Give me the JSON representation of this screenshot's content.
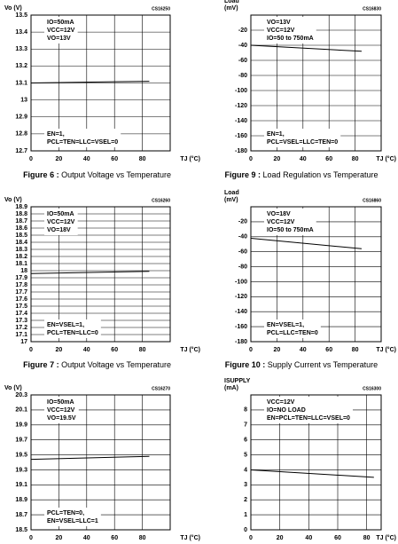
{
  "chart_data": [
    {
      "type": "line",
      "code": "CS16250",
      "ylabel": [
        "Vo (V)"
      ],
      "xlabel": "TJ (°C)",
      "caption": "Figure 6 : Output Voltage vs Temperature",
      "ylim": [
        12.7,
        13.5
      ],
      "yticks": [
        12.7,
        12.8,
        12.9,
        13.0,
        13.1,
        13.2,
        13.3,
        13.4,
        13.5
      ],
      "xlim": [
        0,
        100
      ],
      "xticks": [
        0,
        20,
        40,
        60,
        80
      ],
      "annotations": [
        [
          "IO=50mA",
          "VCC=12V",
          "VO=13V"
        ],
        [
          "EN=1,",
          "PCL=TEN=LLC=VSEL=0"
        ]
      ],
      "series": [
        {
          "color": "#000000",
          "x": [
            0,
            85
          ],
          "values": [
            13.1,
            13.11
          ]
        }
      ]
    },
    {
      "type": "line",
      "code": "CS16830",
      "ylabel": [
        "Load",
        "(mV)"
      ],
      "xlabel": "TJ (°C)",
      "caption": "Figure 9 : Load Regulation vs Temperature",
      "ylim": [
        -180,
        0
      ],
      "yticks": [
        -180,
        -160,
        -140,
        -120,
        -100,
        -80,
        -60,
        -40,
        -20
      ],
      "xlim": [
        0,
        100
      ],
      "xticks": [
        0,
        20,
        40,
        60,
        80
      ],
      "annotations": [
        [
          "VO=13V",
          "VCC=12V",
          "IO=50 to 750mA"
        ],
        [
          "EN=1,",
          "PCL=VSEL=LLC=TEN=0"
        ]
      ],
      "series": [
        {
          "color": "#000000",
          "x": [
            0,
            85
          ],
          "values": [
            -40,
            -48
          ]
        }
      ]
    },
    {
      "type": "line",
      "code": "CS16260",
      "ylabel": [
        "Vo (V)"
      ],
      "xlabel": "TJ (°C)",
      "caption": "Figure 7 : Output Voltage vs Temperature",
      "ylim": [
        17.0,
        18.9
      ],
      "yticks": [
        17.0,
        17.1,
        17.2,
        17.3,
        17.4,
        17.5,
        17.6,
        17.7,
        17.8,
        17.9,
        18.0,
        18.1,
        18.2,
        18.3,
        18.4,
        18.5,
        18.6,
        18.7,
        18.8,
        18.9
      ],
      "xlim": [
        0,
        100
      ],
      "xticks": [
        0,
        20,
        40,
        60,
        80
      ],
      "annotations": [
        [
          "IO=50mA",
          "VCC=12V",
          "VO=18V"
        ],
        [
          "EN=VSEL=1,",
          "PCL=TEN=LLC=0"
        ]
      ],
      "series": [
        {
          "color": "#000000",
          "x": [
            0,
            85
          ],
          "values": [
            17.96,
            17.99
          ]
        }
      ]
    },
    {
      "type": "line",
      "code": "CS16860",
      "ylabel": [
        "Load",
        "(mV)"
      ],
      "xlabel": "TJ (°C)",
      "caption": "Figure 10 : Supply Current vs Temperature",
      "ylim": [
        -180,
        0
      ],
      "yticks": [
        -180,
        -160,
        -140,
        -120,
        -100,
        -80,
        -60,
        -40,
        -20
      ],
      "xlim": [
        0,
        100
      ],
      "xticks": [
        0,
        20,
        40,
        60,
        80
      ],
      "annotations": [
        [
          "VO=18V",
          "VCC=12V",
          "IO=50 to 750mA"
        ],
        [
          "EN=VSEL=1,",
          "PCL=LLC=TEN=0"
        ]
      ],
      "series": [
        {
          "color": "#000000",
          "x": [
            0,
            85
          ],
          "values": [
            -42,
            -56
          ]
        }
      ]
    },
    {
      "type": "line",
      "code": "CS16270",
      "ylabel": [
        "Vo (V)"
      ],
      "xlabel": "TJ (°C)",
      "ylim": [
        18.5,
        20.3
      ],
      "yticks": [
        18.5,
        18.7,
        18.9,
        19.1,
        19.3,
        19.5,
        19.7,
        19.9,
        20.1,
        20.3
      ],
      "xlim": [
        0,
        100
      ],
      "xticks": [
        0,
        20,
        40,
        60,
        80
      ],
      "annotations": [
        [
          "IO=50mA",
          "VCC=12V",
          "VO=19.5V"
        ],
        [
          "PCL=TEN=0,",
          "EN=VSEL=LLC=1"
        ]
      ],
      "series": [
        {
          "color": "#000000",
          "x": [
            0,
            85
          ],
          "values": [
            19.44,
            19.48
          ]
        }
      ]
    },
    {
      "type": "line",
      "code": "CS16300",
      "ylabel": [
        "ISUPPLY",
        "(mA)"
      ],
      "xlabel": "TJ (°C)",
      "ylim": [
        0,
        9
      ],
      "yticks": [
        0,
        1,
        2,
        3,
        4,
        5,
        6,
        7,
        8
      ],
      "xlim": [
        0,
        90
      ],
      "xticks": [
        0,
        20,
        40,
        60,
        80
      ],
      "annotations": [
        [
          "VCC=12V",
          "IO=NO LOAD",
          "EN=PCL=TEN=LLC=VSEL=0"
        ]
      ],
      "series": [
        {
          "color": "#000000",
          "x": [
            0,
            85
          ],
          "values": [
            4,
            3.5
          ]
        }
      ]
    }
  ]
}
